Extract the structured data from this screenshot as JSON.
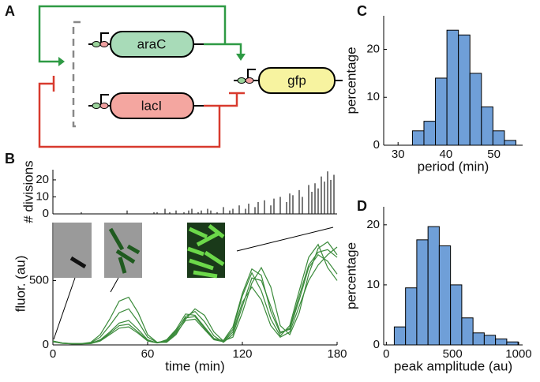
{
  "panel_labels": [
    "A",
    "B",
    "C",
    "D"
  ],
  "circuit": {
    "genes": [
      "araC",
      "lacI",
      "gfp"
    ]
  },
  "chart_data": [
    {
      "type": "bar",
      "ylabel": "# divisions",
      "x": [
        18,
        47,
        64,
        66,
        71,
        74,
        78,
        83,
        86,
        88,
        92,
        94,
        98,
        100,
        104,
        108,
        112,
        114,
        118,
        122,
        124,
        128,
        130,
        134,
        138,
        140,
        144,
        148,
        150,
        152,
        156,
        158,
        162,
        164,
        166,
        168,
        170,
        172,
        174,
        176,
        178
      ],
      "values": [
        1,
        2,
        1,
        1,
        3,
        1,
        2,
        1,
        2,
        3,
        1,
        2,
        3,
        2,
        1,
        4,
        2,
        3,
        5,
        3,
        6,
        4,
        7,
        8,
        5,
        9,
        10,
        7,
        12,
        11,
        14,
        10,
        17,
        13,
        18,
        15,
        22,
        19,
        25,
        20,
        23
      ],
      "color": "#222222",
      "xlim": [
        0,
        180
      ],
      "ylim": [
        0,
        26
      ],
      "yticks": [
        0,
        10,
        20
      ]
    },
    {
      "type": "line",
      "xlabel": "time (min)",
      "ylabel": "fluor. (au)",
      "x": [
        0,
        6,
        12,
        18,
        24,
        30,
        36,
        42,
        48,
        54,
        60,
        66,
        72,
        78,
        84,
        90,
        96,
        102,
        108,
        114,
        120,
        126,
        132,
        138,
        144,
        150,
        156,
        162,
        168,
        174,
        180
      ],
      "series": [
        {
          "color": "#3a8a3a",
          "values": [
            30,
            15,
            10,
            10,
            20,
            80,
            200,
            340,
            370,
            250,
            80,
            20,
            20,
            80,
            200,
            280,
            230,
            100,
            30,
            60,
            250,
            480,
            600,
            450,
            150,
            80,
            250,
            550,
            750,
            800,
            700
          ]
        },
        {
          "color": "#3a8a3a",
          "values": [
            30,
            15,
            10,
            10,
            15,
            60,
            150,
            250,
            280,
            180,
            60,
            20,
            30,
            100,
            220,
            260,
            180,
            70,
            20,
            80,
            300,
            520,
            500,
            300,
            100,
            120,
            350,
            600,
            700,
            650,
            550
          ]
        },
        {
          "color": "#3a8a3a",
          "values": [
            25,
            12,
            8,
            8,
            12,
            40,
            100,
            170,
            190,
            120,
            40,
            15,
            40,
            120,
            240,
            230,
            140,
            50,
            30,
            120,
            380,
            560,
            420,
            200,
            70,
            150,
            420,
            680,
            780,
            600,
            500
          ]
        },
        {
          "color": "#3a8a3a",
          "values": [
            25,
            12,
            8,
            8,
            10,
            30,
            80,
            130,
            140,
            90,
            30,
            15,
            25,
            90,
            190,
            200,
            120,
            40,
            25,
            100,
            330,
            450,
            350,
            150,
            60,
            100,
            300,
            500,
            620,
            700,
            760
          ]
        },
        {
          "color": "#3a8a3a",
          "values": [
            28,
            14,
            9,
            9,
            12,
            35,
            90,
            150,
            160,
            100,
            35,
            18,
            35,
            110,
            210,
            220,
            130,
            45,
            35,
            140,
            400,
            590,
            540,
            260,
            90,
            130,
            380,
            620,
            720,
            740,
            680
          ]
        }
      ],
      "xlim": [
        0,
        180
      ],
      "xticks": [
        0,
        60,
        120,
        180
      ],
      "ylim": [
        0,
        950
      ],
      "yticks": [
        0,
        500
      ]
    },
    {
      "type": "histogram",
      "xlabel": "period (min)",
      "ylabel": "percentage",
      "bins": [
        33,
        35.4,
        37.8,
        40.2,
        42.6,
        45,
        47.4,
        49.8,
        52.2,
        54.6
      ],
      "counts": [
        3,
        5,
        14,
        24,
        23,
        15,
        8,
        3,
        1
      ],
      "color": "#6f9fd8",
      "xlim": [
        27,
        56
      ],
      "xticks": [
        30,
        40,
        50
      ],
      "ylim": [
        0,
        27
      ],
      "yticks": [
        0,
        10,
        20
      ]
    },
    {
      "type": "histogram",
      "xlabel": "peak amplitude (au)",
      "ylabel": "percentage",
      "bins": [
        60,
        145,
        230,
        315,
        400,
        485,
        570,
        655,
        740,
        825,
        910,
        995
      ],
      "counts": [
        3,
        9.5,
        17.5,
        19.7,
        16.5,
        10,
        4.5,
        2,
        1.6,
        1,
        0.5
      ],
      "color": "#6f9fd8",
      "xlim": [
        -20,
        1030
      ],
      "xticks": [
        0,
        500,
        1000
      ],
      "ylim": [
        0,
        23
      ],
      "yticks": [
        0,
        10,
        20
      ]
    }
  ]
}
